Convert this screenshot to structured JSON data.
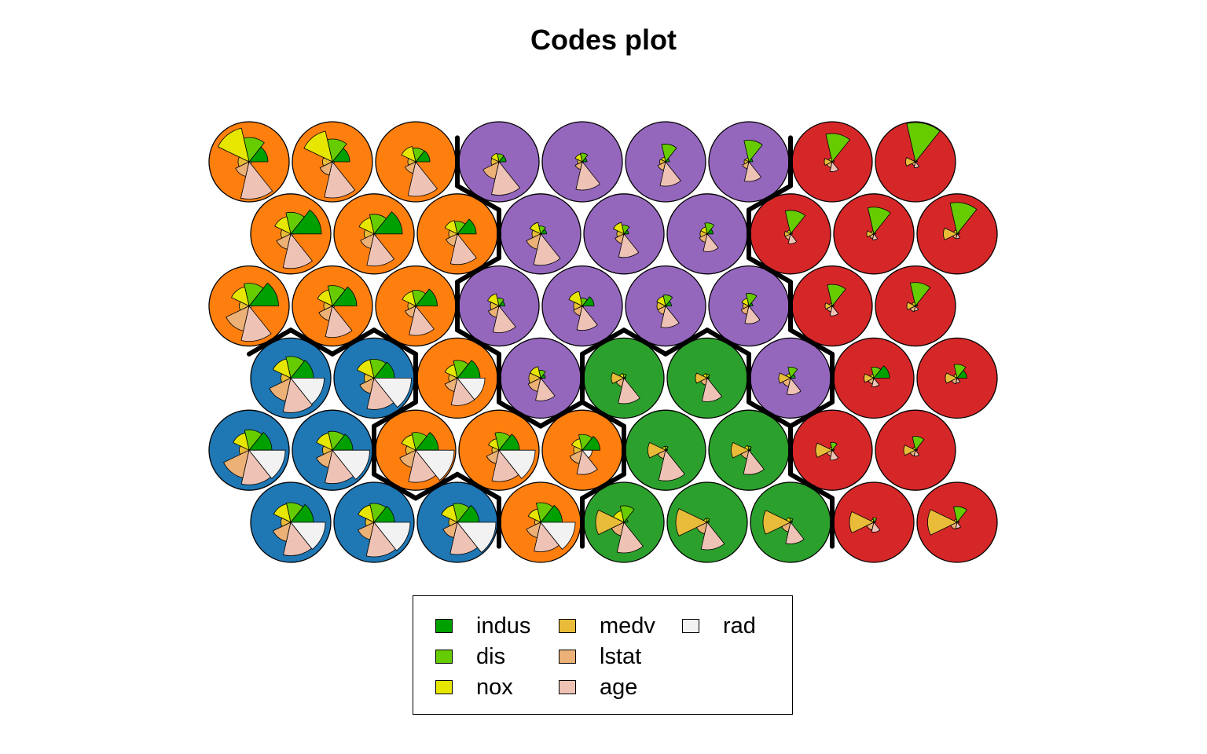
{
  "chart_data": {
    "type": "som-codes-plot",
    "title": "Codes plot",
    "grid": {
      "xdim": 9,
      "ydim": 6,
      "topology": "hexagonal"
    },
    "variables": [
      "indus",
      "dis",
      "nox",
      "medv",
      "lstat",
      "age",
      "rad"
    ],
    "variable_colors": [
      "#00A000",
      "#66CC00",
      "#E6E600",
      "#E8BC38",
      "#ECB176",
      "#EEC3B6",
      "#F2F2F2"
    ],
    "legend": {
      "placement": "bottom",
      "entries": [
        {
          "label": "indus",
          "color": "#00A000"
        },
        {
          "label": "dis",
          "color": "#66CC00"
        },
        {
          "label": "nox",
          "color": "#E6E600"
        },
        {
          "label": "medv",
          "color": "#E8BC38"
        },
        {
          "label": "lstat",
          "color": "#ECB176"
        },
        {
          "label": "age",
          "color": "#EEC3B6"
        },
        {
          "label": "rad",
          "color": "#F2F2F2"
        }
      ]
    },
    "cluster_colors": {
      "orange": "#FF7F0E",
      "purple": "#9467BD",
      "red": "#D62728",
      "blue": "#1F77B4",
      "green": "#2CA02C"
    },
    "cluster_rows_top_to_bottom": [
      [
        "orange",
        "orange",
        "orange",
        "purple",
        "purple",
        "purple",
        "purple",
        "red",
        "red"
      ],
      [
        "orange",
        "orange",
        "orange",
        "purple",
        "purple",
        "purple",
        "red",
        "red",
        "red"
      ],
      [
        "orange",
        "orange",
        "orange",
        "purple",
        "purple",
        "purple",
        "purple",
        "red",
        "red"
      ],
      [
        "blue",
        "blue",
        "orange",
        "purple",
        "green",
        "green",
        "purple",
        "red",
        "red"
      ],
      [
        "blue",
        "blue",
        "orange",
        "orange",
        "orange",
        "green",
        "green",
        "red",
        "red"
      ],
      [
        "blue",
        "blue",
        "blue",
        "orange",
        "green",
        "green",
        "green",
        "red",
        "red"
      ]
    ],
    "codes_rows_top_to_bottom": [
      [
        [
          0.48,
          0.62,
          0.88,
          0.28,
          0.38,
          0.95,
          0.06
        ],
        [
          0.44,
          0.58,
          0.8,
          0.25,
          0.35,
          0.92,
          0.05
        ],
        [
          0.36,
          0.35,
          0.4,
          0.2,
          0.3,
          0.88,
          0.04
        ],
        [
          0.18,
          0.2,
          0.22,
          0.2,
          0.45,
          0.85,
          0.03
        ],
        [
          0.12,
          0.22,
          0.2,
          0.12,
          0.2,
          0.72,
          0.03
        ],
        [
          0.1,
          0.45,
          0.12,
          0.15,
          0.22,
          0.62,
          0.02
        ],
        [
          0.1,
          0.55,
          0.1,
          0.12,
          0.18,
          0.5,
          0.02
        ],
        [
          0.05,
          0.72,
          0.1,
          0.2,
          0.15,
          0.25,
          0.02
        ],
        [
          0.05,
          1.0,
          0.05,
          0.25,
          0.1,
          0.15,
          0.02
        ]
      ],
      [
        [
          0.78,
          0.55,
          0.45,
          0.25,
          0.4,
          0.88,
          0.06
        ],
        [
          0.72,
          0.5,
          0.42,
          0.25,
          0.38,
          0.82,
          0.05
        ],
        [
          0.48,
          0.32,
          0.35,
          0.22,
          0.32,
          0.78,
          0.04
        ],
        [
          0.15,
          0.2,
          0.3,
          0.22,
          0.4,
          0.8,
          0.03
        ],
        [
          0.12,
          0.22,
          0.3,
          0.18,
          0.25,
          0.6,
          0.03
        ],
        [
          0.15,
          0.28,
          0.18,
          0.18,
          0.22,
          0.45,
          0.02
        ],
        [
          0.05,
          0.6,
          0.1,
          0.15,
          0.15,
          0.25,
          0.02
        ],
        [
          0.05,
          0.68,
          0.08,
          0.18,
          0.12,
          0.15,
          0.02
        ],
        [
          0.06,
          0.8,
          0.1,
          0.35,
          0.12,
          0.12,
          0.02
        ]
      ],
      [
        [
          0.75,
          0.58,
          0.5,
          0.25,
          0.65,
          0.9,
          0.06
        ],
        [
          0.62,
          0.52,
          0.42,
          0.22,
          0.38,
          0.8,
          0.05
        ],
        [
          0.55,
          0.4,
          0.38,
          0.2,
          0.3,
          0.75,
          0.04
        ],
        [
          0.15,
          0.2,
          0.32,
          0.22,
          0.3,
          0.68,
          0.03
        ],
        [
          0.3,
          0.2,
          0.38,
          0.22,
          0.25,
          0.62,
          0.03
        ],
        [
          0.15,
          0.28,
          0.25,
          0.22,
          0.22,
          0.55,
          0.02
        ],
        [
          0.1,
          0.32,
          0.2,
          0.15,
          0.22,
          0.45,
          0.02
        ],
        [
          0.05,
          0.55,
          0.08,
          0.18,
          0.15,
          0.25,
          0.02
        ],
        [
          0.06,
          0.6,
          0.1,
          0.22,
          0.15,
          0.12,
          0.02
        ]
      ],
      [
        [
          0.58,
          0.55,
          0.5,
          0.25,
          0.6,
          0.88,
          0.85
        ],
        [
          0.52,
          0.48,
          0.48,
          0.25,
          0.4,
          0.8,
          0.95
        ],
        [
          0.58,
          0.45,
          0.35,
          0.22,
          0.35,
          0.7,
          0.7
        ],
        [
          0.12,
          0.2,
          0.3,
          0.3,
          0.35,
          0.58,
          0.04
        ],
        [
          0.05,
          0.1,
          0.12,
          0.32,
          0.22,
          0.65,
          0.03
        ],
        [
          0.05,
          0.1,
          0.12,
          0.3,
          0.18,
          0.6,
          0.03
        ],
        [
          0.12,
          0.28,
          0.12,
          0.3,
          0.22,
          0.42,
          0.02
        ],
        [
          0.4,
          0.28,
          0.1,
          0.25,
          0.15,
          0.22,
          0.02
        ],
        [
          0.25,
          0.35,
          0.1,
          0.3,
          0.15,
          0.12,
          0.02
        ]
      ],
      [
        [
          0.58,
          0.52,
          0.45,
          0.25,
          0.72,
          0.88,
          0.92
        ],
        [
          0.52,
          0.48,
          0.45,
          0.25,
          0.45,
          0.85,
          0.95
        ],
        [
          0.58,
          0.45,
          0.4,
          0.25,
          0.45,
          0.82,
          0.98
        ],
        [
          0.52,
          0.45,
          0.3,
          0.18,
          0.35,
          0.8,
          0.92
        ],
        [
          0.45,
          0.4,
          0.3,
          0.22,
          0.35,
          0.62,
          0.25
        ],
        [
          0.05,
          0.1,
          0.1,
          0.45,
          0.22,
          0.78,
          0.03
        ],
        [
          0.05,
          0.1,
          0.12,
          0.45,
          0.22,
          0.62,
          0.03
        ],
        [
          0.05,
          0.2,
          0.08,
          0.42,
          0.15,
          0.25,
          0.02
        ],
        [
          0.05,
          0.35,
          0.08,
          0.3,
          0.15,
          0.15,
          0.02
        ]
      ],
      [
        [
          0.58,
          0.5,
          0.48,
          0.25,
          0.5,
          0.85,
          0.88
        ],
        [
          0.52,
          0.48,
          0.45,
          0.22,
          0.45,
          0.88,
          0.92
        ],
        [
          0.55,
          0.48,
          0.45,
          0.22,
          0.4,
          0.82,
          0.98
        ],
        [
          0.55,
          0.5,
          0.35,
          0.15,
          0.4,
          0.75,
          0.88
        ],
        [
          0.1,
          0.42,
          0.3,
          0.72,
          0.35,
          0.78,
          0.03
        ],
        [
          0.05,
          0.1,
          0.1,
          0.8,
          0.3,
          0.7,
          0.02
        ],
        [
          0.05,
          0.1,
          0.12,
          0.7,
          0.25,
          0.55,
          0.02
        ],
        [
          0.05,
          0.12,
          0.08,
          0.62,
          0.2,
          0.25,
          0.02
        ],
        [
          0.05,
          0.4,
          0.08,
          0.75,
          0.18,
          0.15,
          0.02
        ]
      ]
    ],
    "cluster_boundaries": true
  }
}
